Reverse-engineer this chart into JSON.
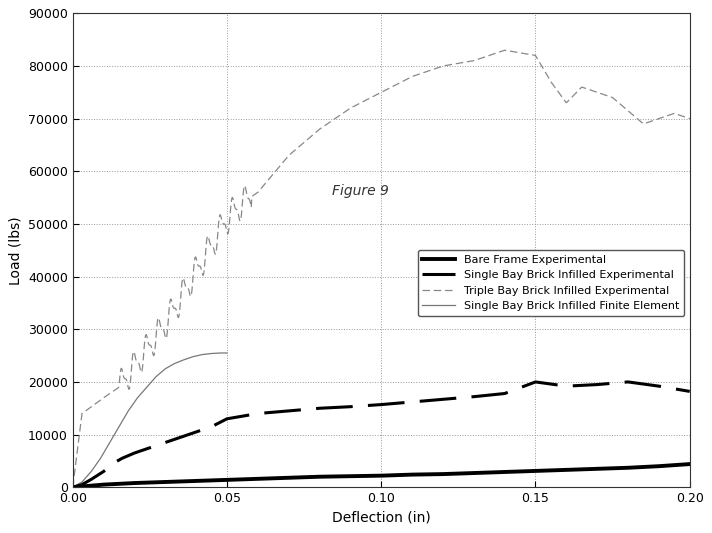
{
  "title": "Figure 9",
  "xlabel": "Deflection (in)",
  "ylabel": "Load (lbs)",
  "xlim": [
    0.0,
    0.2
  ],
  "ylim": [
    0,
    90000
  ],
  "yticks": [
    0,
    10000,
    20000,
    30000,
    40000,
    50000,
    60000,
    70000,
    80000,
    90000
  ],
  "xticks": [
    0.0,
    0.05,
    0.1,
    0.15,
    0.2
  ],
  "background_color": "#ffffff",
  "legend_entries": [
    "Bare Frame Experimental",
    "Single Bay Brick Infilled Experimental",
    "Triple Bay Brick Infilled Experimental",
    "Single Bay Brick Infilled Finite Element"
  ],
  "bare_frame_x": [
    0.0,
    0.002,
    0.005,
    0.01,
    0.02,
    0.03,
    0.04,
    0.05,
    0.06,
    0.07,
    0.08,
    0.09,
    0.1,
    0.11,
    0.12,
    0.13,
    0.14,
    0.15,
    0.16,
    0.17,
    0.18,
    0.19,
    0.2
  ],
  "bare_frame_y": [
    0,
    100,
    250,
    500,
    800,
    1000,
    1200,
    1400,
    1600,
    1800,
    2000,
    2100,
    2200,
    2400,
    2500,
    2700,
    2900,
    3100,
    3300,
    3500,
    3700,
    4000,
    4400
  ],
  "single_bay_exp_x": [
    0.0,
    0.003,
    0.006,
    0.01,
    0.013,
    0.016,
    0.02,
    0.025,
    0.03,
    0.035,
    0.04,
    0.045,
    0.05,
    0.055,
    0.06,
    0.07,
    0.08,
    0.09,
    0.1,
    0.11,
    0.12,
    0.13,
    0.14,
    0.15,
    0.16,
    0.17,
    0.18,
    0.19,
    0.2
  ],
  "single_bay_exp_y": [
    0,
    500,
    1500,
    3000,
    4500,
    5500,
    6500,
    7500,
    8500,
    9500,
    10500,
    11500,
    13000,
    13500,
    14000,
    14500,
    15000,
    15300,
    15700,
    16200,
    16700,
    17200,
    17800,
    20000,
    19200,
    19500,
    20000,
    19200,
    18200
  ],
  "single_bay_fe_x": [
    0.0,
    0.003,
    0.006,
    0.009,
    0.012,
    0.015,
    0.018,
    0.021,
    0.024,
    0.027,
    0.03,
    0.033,
    0.036,
    0.039,
    0.042,
    0.045,
    0.048,
    0.05
  ],
  "single_bay_fe_y": [
    0,
    1000,
    3000,
    5500,
    8500,
    11500,
    14500,
    17000,
    19000,
    21000,
    22500,
    23500,
    24200,
    24800,
    25200,
    25400,
    25500,
    25500
  ]
}
